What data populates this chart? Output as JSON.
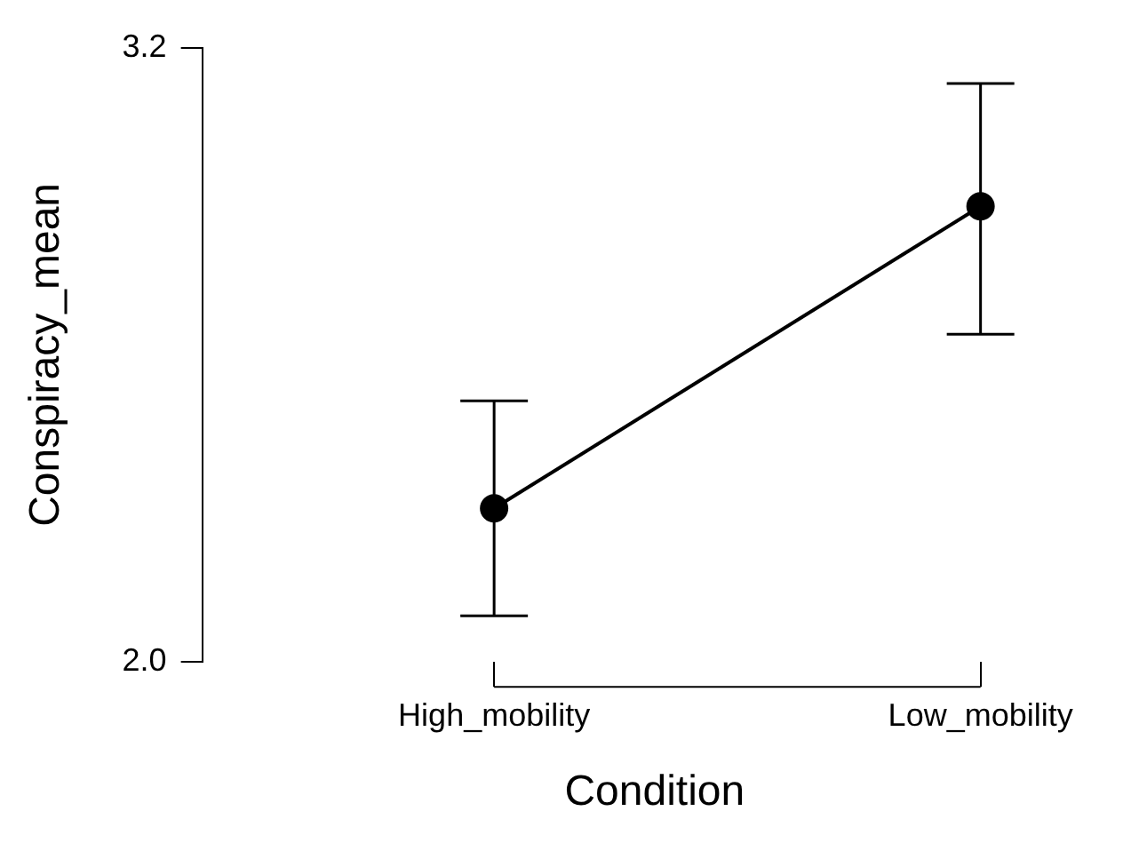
{
  "chart_data": {
    "type": "line",
    "categories": [
      "High_mobility",
      "Low_mobility"
    ],
    "values": [
      2.3,
      2.89
    ],
    "errors": [
      [
        2.09,
        2.51
      ],
      [
        2.64,
        3.13
      ]
    ],
    "color": "#000000",
    "xlabel": "Condition",
    "ylabel": "Conspiracy_mean",
    "ylim": [
      2.0,
      3.2
    ],
    "yticks": [
      {
        "value": 2.0,
        "label": "2.0"
      },
      {
        "value": 3.2,
        "label": "3.2"
      }
    ],
    "marker": "circle",
    "line_style": "solid",
    "grid": false
  }
}
